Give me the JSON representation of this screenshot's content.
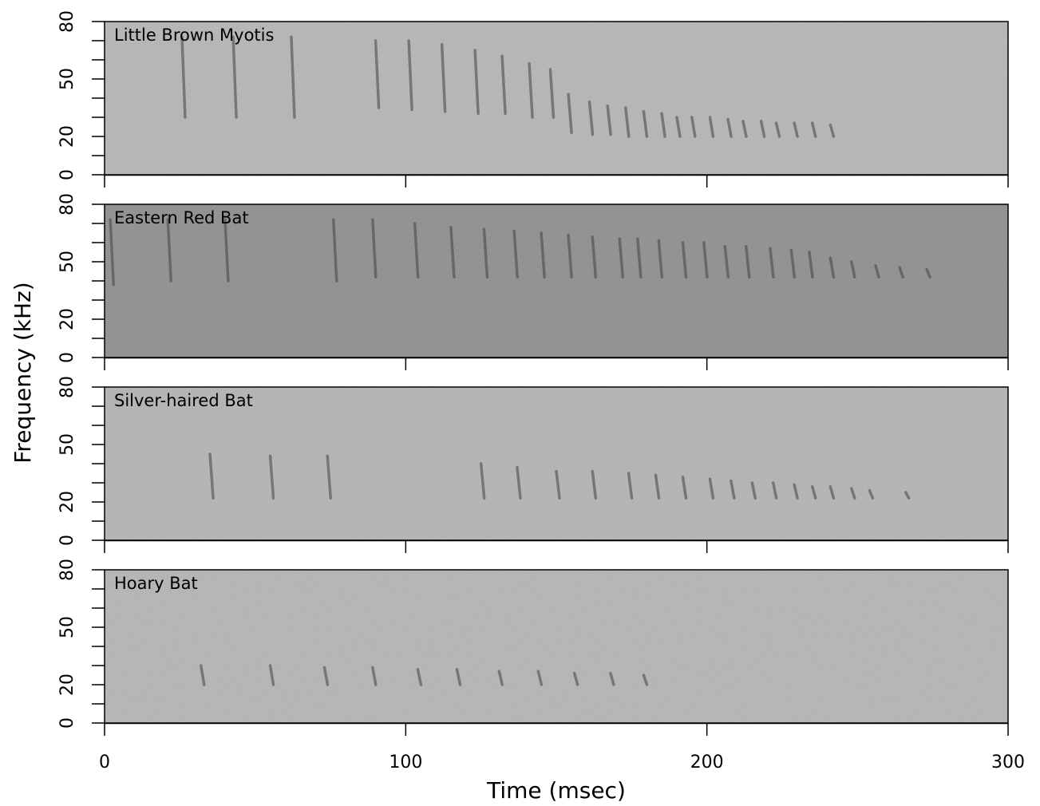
{
  "chart_data": {
    "type": "spectrogram",
    "xlabel": "Time (msec)",
    "ylabel": "Frequency (kHz)",
    "xlim": [
      0,
      300
    ],
    "xticks": [
      0,
      100,
      200,
      300
    ],
    "ylim": [
      0,
      80
    ],
    "yticks": [
      0,
      20,
      50,
      80
    ],
    "yminorticks": [
      10,
      30,
      40,
      60,
      70
    ],
    "pulse_color": "#444444",
    "panels": [
      {
        "title": "Little Brown Myotis",
        "color": "#b6b6b6",
        "t": [
          25.7,
          42.7,
          62,
          90,
          101,
          112,
          123,
          132,
          141,
          148,
          154,
          161,
          167,
          173,
          179,
          185,
          190,
          195,
          201,
          207,
          212,
          218,
          223,
          229,
          235,
          241
        ],
        "fhigh": [
          72,
          72,
          72,
          70,
          70,
          68,
          65,
          62,
          58,
          55,
          42,
          38,
          36,
          35,
          33,
          32,
          30,
          30,
          30,
          29,
          28,
          28,
          27,
          27,
          27,
          26
        ],
        "flow": [
          30,
          30,
          30,
          35,
          34,
          33,
          32,
          32,
          30,
          30,
          22,
          21,
          21,
          20,
          20,
          20,
          20,
          20,
          20,
          20,
          20,
          20,
          20,
          20,
          20,
          20
        ]
      },
      {
        "title": "Eastern Red Bat",
        "color": "#8f8f8f",
        "t": [
          1.9,
          21,
          40,
          76,
          89,
          103,
          115,
          126,
          136,
          145,
          154,
          162,
          171,
          177,
          184,
          192,
          199,
          206,
          213,
          221,
          228,
          234,
          241,
          248,
          256,
          264,
          273
        ],
        "fhigh": [
          72,
          72,
          72,
          72,
          72,
          70,
          68,
          67,
          66,
          65,
          64,
          63,
          62,
          62,
          61,
          60,
          60,
          58,
          58,
          57,
          56,
          55,
          52,
          50,
          48,
          47,
          46
        ],
        "flow": [
          38,
          40,
          40,
          40,
          42,
          42,
          42,
          42,
          42,
          42,
          42,
          42,
          42,
          42,
          42,
          42,
          42,
          42,
          42,
          42,
          42,
          42,
          42,
          42,
          42,
          42,
          42
        ]
      },
      {
        "title": "Silver-haired Bat",
        "color": "#b4b4b4",
        "t": [
          35,
          55,
          74,
          125,
          137,
          150,
          162,
          174,
          183,
          192,
          201,
          208,
          215,
          222,
          229,
          235,
          241,
          248,
          254,
          266
        ],
        "fhigh": [
          45,
          44,
          44,
          40,
          38,
          36,
          36,
          35,
          34,
          33,
          32,
          31,
          30,
          30,
          29,
          28,
          28,
          27,
          26,
          25
        ],
        "flow": [
          22,
          22,
          22,
          22,
          22,
          22,
          22,
          22,
          22,
          22,
          22,
          22,
          22,
          22,
          22,
          22,
          22,
          22,
          22,
          22
        ]
      },
      {
        "title": "Hoary Bat",
        "color": "#b5b5b5",
        "t": [
          32,
          55,
          73,
          89,
          104,
          117,
          131,
          144,
          156,
          168,
          179
        ],
        "fhigh": [
          30,
          30,
          29,
          29,
          28,
          28,
          27,
          27,
          26,
          26,
          25
        ],
        "flow": [
          20,
          20,
          20,
          20,
          20,
          20,
          20,
          20,
          20,
          20,
          20
        ]
      }
    ]
  }
}
